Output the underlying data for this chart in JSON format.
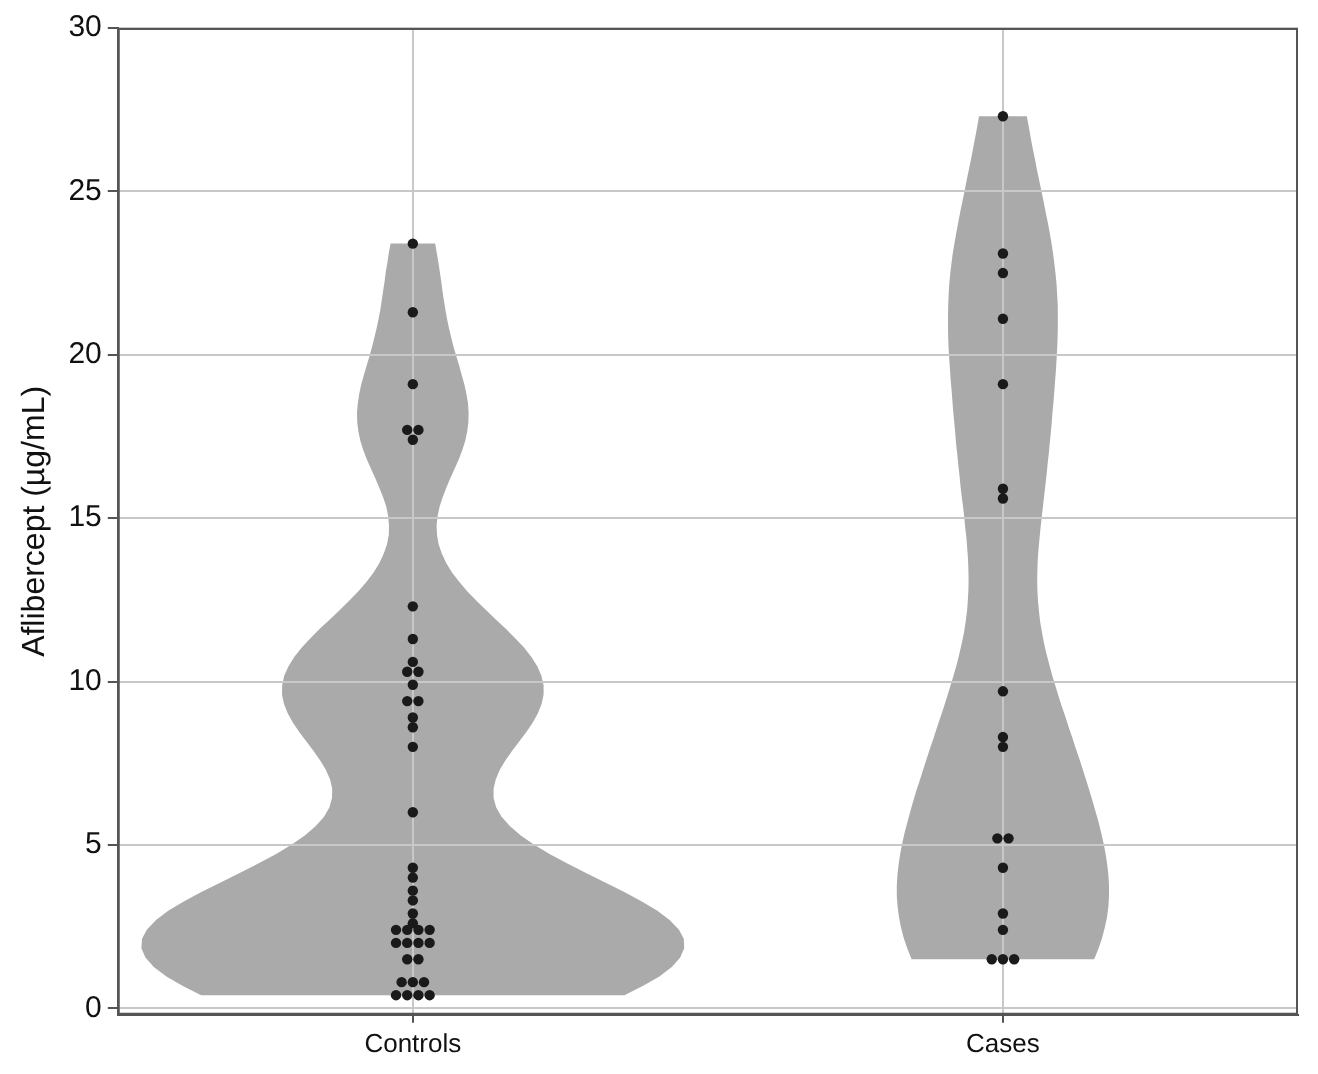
{
  "chart_data": {
    "type": "scatter",
    "ylabel": "Aflibercept (µg/mL)",
    "categories": [
      "Controls",
      "Cases"
    ],
    "ylim": [
      -0.2,
      30
    ],
    "yticks": [
      0,
      5,
      10,
      15,
      20,
      25,
      30
    ],
    "grid": true,
    "legend": false,
    "marker": "circle",
    "series": [
      {
        "color": "#1a1a1a",
        "x": [
          "Controls",
          "Controls",
          "Controls",
          "Controls",
          "Controls",
          "Controls",
          "Controls",
          "Controls",
          "Controls",
          "Controls",
          "Controls",
          "Controls",
          "Controls",
          "Controls",
          "Controls",
          "Controls",
          "Controls",
          "Controls",
          "Controls",
          "Controls",
          "Controls",
          "Controls",
          "Controls",
          "Controls",
          "Controls",
          "Controls",
          "Controls",
          "Controls",
          "Controls",
          "Controls",
          "Controls",
          "Controls",
          "Controls",
          "Controls",
          "Controls",
          "Controls",
          "Controls",
          "Controls",
          "Controls",
          "Controls",
          "Controls",
          "Cases",
          "Cases",
          "Cases",
          "Cases",
          "Cases",
          "Cases",
          "Cases",
          "Cases",
          "Cases",
          "Cases",
          "Cases",
          "Cases",
          "Cases",
          "Cases",
          "Cases",
          "Cases",
          "Cases",
          "Cases"
        ],
        "values": [
          23.4,
          21.3,
          19.1,
          17.7,
          17.7,
          17.4,
          12.3,
          11.3,
          10.6,
          10.3,
          10.3,
          9.9,
          9.4,
          9.4,
          8.9,
          8.6,
          8.0,
          6.0,
          4.3,
          4.0,
          3.6,
          3.3,
          2.9,
          2.6,
          2.4,
          2.4,
          2.4,
          2.4,
          2.0,
          2.0,
          2.0,
          2.0,
          1.5,
          1.5,
          0.8,
          0.8,
          0.8,
          0.4,
          0.4,
          0.4,
          0.4,
          27.3,
          23.1,
          22.5,
          21.1,
          19.1,
          15.9,
          15.6,
          9.7,
          8.3,
          8.0,
          5.2,
          5.2,
          4.3,
          2.9,
          2.4,
          1.5,
          1.5,
          1.5
        ]
      }
    ]
  }
}
